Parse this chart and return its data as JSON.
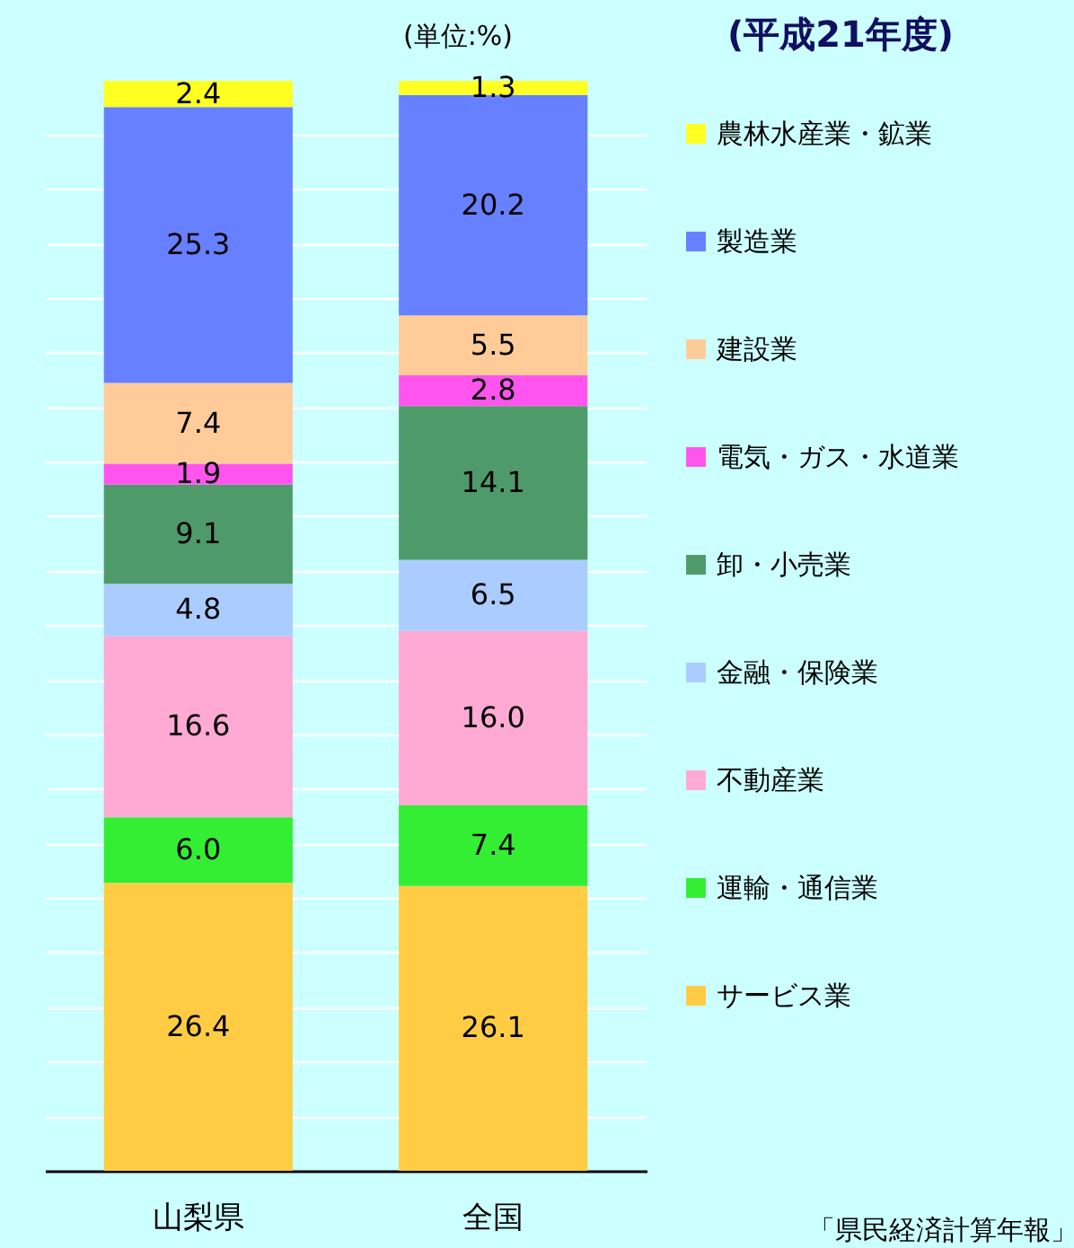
{
  "chart_data": {
    "type": "bar",
    "stacked": true,
    "title": "(平成21年度)",
    "annotations": [
      "(単位:%)",
      "「県民経済計算年報」"
    ],
    "categories": [
      "山梨県",
      "全国"
    ],
    "series": [
      {
        "name": "サービス業",
        "color": "#ffcc44",
        "values": [
          26.4,
          26.1
        ],
        "value_labels": [
          "26.4",
          "26.1"
        ]
      },
      {
        "name": "運輸・通信業",
        "color": "#33ee33",
        "values": [
          6.0,
          7.4
        ],
        "value_labels": [
          "6.0",
          "7.4"
        ]
      },
      {
        "name": "不動産業",
        "color": "#ffaad4",
        "values": [
          16.6,
          16.0
        ],
        "value_labels": [
          "16.6",
          "16.0"
        ]
      },
      {
        "name": "金融・保険業",
        "color": "#aaccff",
        "values": [
          4.8,
          6.5
        ],
        "value_labels": [
          "4.8",
          "6.5"
        ]
      },
      {
        "name": "卸・小売業",
        "color": "#4f9a6a",
        "values": [
          9.1,
          14.1
        ],
        "value_labels": [
          "9.1",
          "14.1"
        ]
      },
      {
        "name": "電気・ガス・水道業",
        "color": "#ff55ee",
        "values": [
          1.9,
          2.8
        ],
        "value_labels": [
          "1.9",
          "2.8"
        ]
      },
      {
        "name": "建設業",
        "color": "#ffcc99",
        "values": [
          7.4,
          5.5
        ],
        "value_labels": [
          "7.4",
          "5.5"
        ]
      },
      {
        "name": "製造業",
        "color": "#6680ff",
        "values": [
          25.3,
          20.2
        ],
        "value_labels": [
          "25.3",
          "20.2"
        ]
      },
      {
        "name": "農林水産業・鉱業",
        "color": "#ffff22",
        "values": [
          2.4,
          1.3
        ],
        "value_labels": [
          "2.4",
          "1.3"
        ]
      }
    ],
    "tick_labels": "x",
    "grid": "y",
    "legend": "right"
  }
}
